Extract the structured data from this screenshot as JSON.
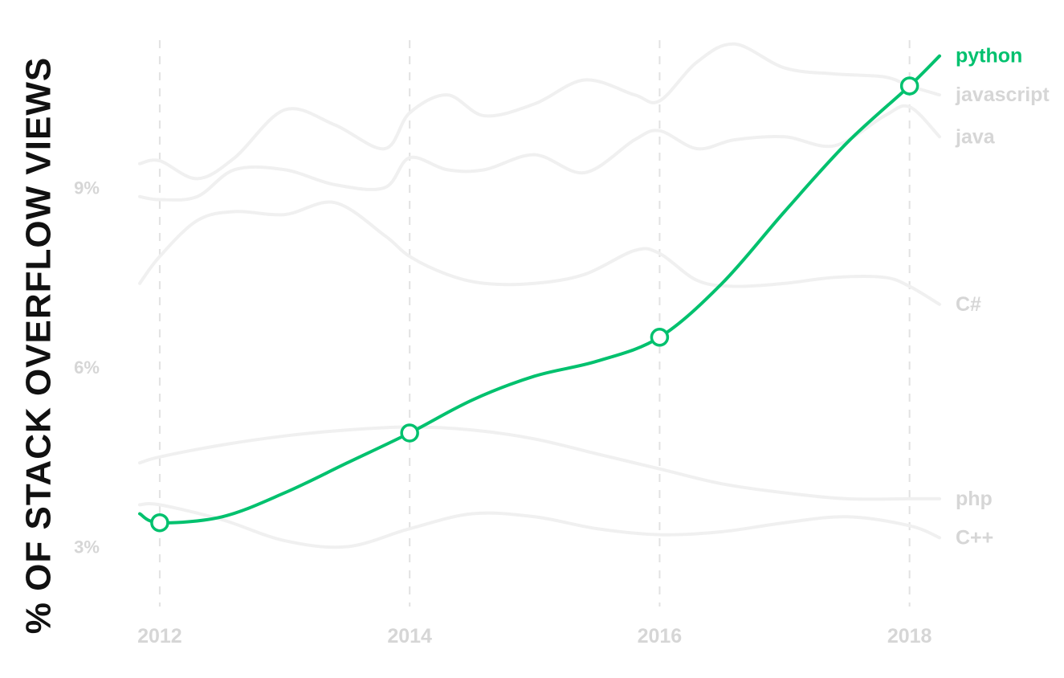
{
  "chart_data": {
    "type": "line",
    "title": "",
    "xlabel": "",
    "ylabel": "% OF STACK OVERFLOW VIEWS",
    "xlim": [
      2011.84,
      2018.24
    ],
    "ylim": [
      2,
      11.8
    ],
    "x_ticks": [
      2012,
      2014,
      2016,
      2018
    ],
    "x_tick_labels": [
      "2012",
      "2014",
      "2016",
      "2018"
    ],
    "y_ticks": [
      3,
      6,
      9
    ],
    "y_tick_labels": [
      "3%",
      "6%",
      "9%"
    ],
    "grid": {
      "vertical": true,
      "horizontal": false,
      "style": "dashed"
    },
    "legend": "direct labels at right end of each line",
    "highlight_series": "python",
    "colors": {
      "highlight": "#00c16e",
      "muted_line": "#f0f0f0",
      "muted_label": "#d6d6d6",
      "grid": "#e2e2e2",
      "axis_title": "#111111"
    },
    "series": [
      {
        "name": "javascript",
        "highlight": false,
        "x": [
          2011.84,
          2012.0,
          2012.3,
          2012.6,
          2013.0,
          2013.4,
          2013.8,
          2014.0,
          2014.3,
          2014.6,
          2015.0,
          2015.4,
          2015.8,
          2016.0,
          2016.3,
          2016.6,
          2017.0,
          2017.4,
          2017.8,
          2018.0,
          2018.24
        ],
        "y": [
          9.4,
          9.45,
          9.15,
          9.5,
          10.3,
          10.05,
          9.65,
          10.25,
          10.55,
          10.2,
          10.4,
          10.8,
          10.55,
          10.45,
          11.1,
          11.4,
          11.0,
          10.9,
          10.85,
          10.7,
          10.55
        ]
      },
      {
        "name": "java",
        "highlight": false,
        "x": [
          2011.84,
          2012.0,
          2012.3,
          2012.6,
          2013.0,
          2013.4,
          2013.8,
          2014.0,
          2014.3,
          2014.6,
          2015.0,
          2015.4,
          2015.8,
          2016.0,
          2016.3,
          2016.6,
          2017.0,
          2017.4,
          2017.8,
          2018.0,
          2018.24
        ],
        "y": [
          8.85,
          8.8,
          8.85,
          9.3,
          9.3,
          9.05,
          9.0,
          9.5,
          9.3,
          9.3,
          9.55,
          9.25,
          9.8,
          9.95,
          9.65,
          9.8,
          9.85,
          9.7,
          10.2,
          10.35,
          9.85
        ]
      },
      {
        "name": "C#",
        "highlight": false,
        "x": [
          2011.84,
          2012.0,
          2012.3,
          2012.6,
          2013.0,
          2013.4,
          2013.8,
          2014.0,
          2014.3,
          2014.6,
          2015.0,
          2015.4,
          2015.8,
          2016.0,
          2016.3,
          2016.6,
          2017.0,
          2017.4,
          2017.8,
          2018.0,
          2018.24
        ],
        "y": [
          7.4,
          7.85,
          8.45,
          8.6,
          8.55,
          8.75,
          8.2,
          7.85,
          7.55,
          7.4,
          7.4,
          7.55,
          7.95,
          7.9,
          7.45,
          7.35,
          7.4,
          7.5,
          7.5,
          7.35,
          7.05
        ]
      },
      {
        "name": "php",
        "highlight": false,
        "x": [
          2011.84,
          2012.0,
          2012.5,
          2013.0,
          2013.5,
          2014.0,
          2014.5,
          2015.0,
          2015.5,
          2016.0,
          2016.5,
          2017.0,
          2017.5,
          2018.0,
          2018.24
        ],
        "y": [
          4.4,
          4.5,
          4.7,
          4.85,
          4.95,
          5.0,
          4.95,
          4.8,
          4.55,
          4.3,
          4.05,
          3.9,
          3.8,
          3.8,
          3.8
        ]
      },
      {
        "name": "C++",
        "highlight": false,
        "x": [
          2011.84,
          2012.0,
          2012.5,
          2013.0,
          2013.5,
          2014.0,
          2014.5,
          2015.0,
          2015.5,
          2016.0,
          2016.5,
          2017.0,
          2017.5,
          2018.0,
          2018.24
        ],
        "y": [
          3.7,
          3.7,
          3.45,
          3.1,
          3.0,
          3.3,
          3.55,
          3.5,
          3.3,
          3.2,
          3.25,
          3.4,
          3.5,
          3.35,
          3.15
        ]
      },
      {
        "name": "python",
        "highlight": true,
        "x": [
          2011.84,
          2012.0,
          2012.5,
          2013.0,
          2013.5,
          2014.0,
          2014.5,
          2015.0,
          2015.5,
          2016.0,
          2016.5,
          2017.0,
          2017.5,
          2018.0,
          2018.24
        ],
        "y": [
          3.55,
          3.4,
          3.5,
          3.9,
          4.4,
          4.9,
          5.45,
          5.85,
          6.1,
          6.5,
          7.4,
          8.6,
          9.75,
          10.7,
          11.2
        ],
        "markers": {
          "x": [
            2012,
            2014,
            2016,
            2018
          ],
          "y": [
            3.4,
            4.9,
            6.5,
            10.7
          ]
        }
      }
    ]
  }
}
